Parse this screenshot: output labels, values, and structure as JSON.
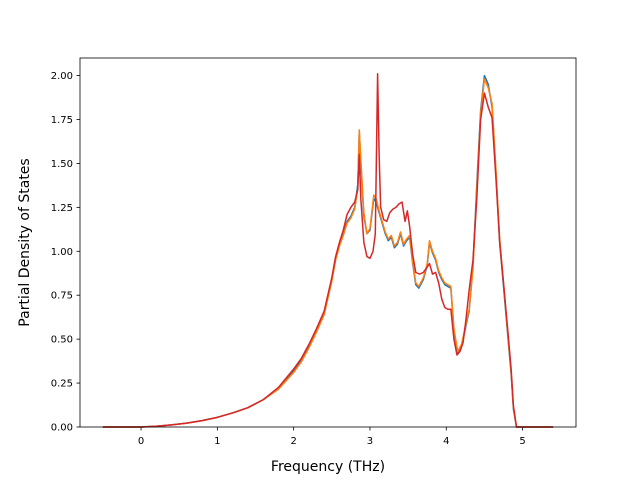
{
  "chart_data": {
    "type": "line",
    "xlabel": "Frequency (THz)",
    "ylabel": "Partial Density of States",
    "xlim": [
      -0.8,
      5.7
    ],
    "ylim": [
      0.0,
      2.1
    ],
    "xticks": [
      0,
      1,
      2,
      3,
      4,
      5
    ],
    "xtick_labels": [
      "0",
      "1",
      "2",
      "3",
      "4",
      "5"
    ],
    "yticks": [
      0.0,
      0.25,
      0.5,
      0.75,
      1.0,
      1.25,
      1.5,
      1.75,
      2.0
    ],
    "ytick_labels": [
      "0.00",
      "0.25",
      "0.50",
      "0.75",
      "1.00",
      "1.25",
      "1.50",
      "1.75",
      "2.00"
    ],
    "grid": false,
    "series": [
      {
        "color": "#1f77b4",
        "points": [
          [
            -0.5,
            0
          ],
          [
            0,
            0
          ],
          [
            0.2,
            0.004
          ],
          [
            0.4,
            0.012
          ],
          [
            0.6,
            0.022
          ],
          [
            0.8,
            0.036
          ],
          [
            1.0,
            0.055
          ],
          [
            1.2,
            0.08
          ],
          [
            1.4,
            0.11
          ],
          [
            1.6,
            0.155
          ],
          [
            1.8,
            0.22
          ],
          [
            2.0,
            0.32
          ],
          [
            2.1,
            0.38
          ],
          [
            2.2,
            0.46
          ],
          [
            2.3,
            0.55
          ],
          [
            2.4,
            0.65
          ],
          [
            2.5,
            0.84
          ],
          [
            2.55,
            0.96
          ],
          [
            2.6,
            1.04
          ],
          [
            2.65,
            1.1
          ],
          [
            2.7,
            1.17
          ],
          [
            2.75,
            1.2
          ],
          [
            2.8,
            1.25
          ],
          [
            2.84,
            1.38
          ],
          [
            2.86,
            1.68
          ],
          [
            2.88,
            1.5
          ],
          [
            2.92,
            1.2
          ],
          [
            2.96,
            1.1
          ],
          [
            3.0,
            1.12
          ],
          [
            3.05,
            1.3
          ],
          [
            3.08,
            1.28
          ],
          [
            3.12,
            1.22
          ],
          [
            3.16,
            1.16
          ],
          [
            3.2,
            1.1
          ],
          [
            3.24,
            1.06
          ],
          [
            3.28,
            1.08
          ],
          [
            3.32,
            1.02
          ],
          [
            3.36,
            1.04
          ],
          [
            3.4,
            1.1
          ],
          [
            3.44,
            1.03
          ],
          [
            3.48,
            1.06
          ],
          [
            3.52,
            1.08
          ],
          [
            3.56,
            0.93
          ],
          [
            3.6,
            0.81
          ],
          [
            3.64,
            0.79
          ],
          [
            3.7,
            0.84
          ],
          [
            3.75,
            0.92
          ],
          [
            3.78,
            1.05
          ],
          [
            3.82,
            0.99
          ],
          [
            3.86,
            0.95
          ],
          [
            3.9,
            0.88
          ],
          [
            3.94,
            0.84
          ],
          [
            3.98,
            0.81
          ],
          [
            4.02,
            0.8
          ],
          [
            4.06,
            0.79
          ],
          [
            4.1,
            0.55
          ],
          [
            4.15,
            0.42
          ],
          [
            4.2,
            0.46
          ],
          [
            4.25,
            0.56
          ],
          [
            4.3,
            0.66
          ],
          [
            4.35,
            0.92
          ],
          [
            4.4,
            1.38
          ],
          [
            4.45,
            1.8
          ],
          [
            4.5,
            2.0
          ],
          [
            4.55,
            1.95
          ],
          [
            4.6,
            1.82
          ],
          [
            4.65,
            1.45
          ],
          [
            4.7,
            1.05
          ],
          [
            4.75,
            0.8
          ],
          [
            4.8,
            0.55
          ],
          [
            4.85,
            0.3
          ],
          [
            4.88,
            0.1
          ],
          [
            4.92,
            0
          ],
          [
            5.4,
            0
          ]
        ]
      },
      {
        "color": "#ff7f0e",
        "points": [
          [
            -0.5,
            0
          ],
          [
            0,
            0
          ],
          [
            0.2,
            0.004
          ],
          [
            0.4,
            0.012
          ],
          [
            0.6,
            0.022
          ],
          [
            0.8,
            0.036
          ],
          [
            1.0,
            0.055
          ],
          [
            1.2,
            0.08
          ],
          [
            1.4,
            0.11
          ],
          [
            1.6,
            0.155
          ],
          [
            1.8,
            0.215
          ],
          [
            2.0,
            0.31
          ],
          [
            2.1,
            0.37
          ],
          [
            2.2,
            0.45
          ],
          [
            2.3,
            0.54
          ],
          [
            2.4,
            0.64
          ],
          [
            2.5,
            0.83
          ],
          [
            2.55,
            0.95
          ],
          [
            2.6,
            1.03
          ],
          [
            2.65,
            1.09
          ],
          [
            2.7,
            1.16
          ],
          [
            2.75,
            1.19
          ],
          [
            2.8,
            1.24
          ],
          [
            2.84,
            1.36
          ],
          [
            2.86,
            1.69
          ],
          [
            2.88,
            1.52
          ],
          [
            2.92,
            1.22
          ],
          [
            2.96,
            1.1
          ],
          [
            3.0,
            1.13
          ],
          [
            3.05,
            1.32
          ],
          [
            3.08,
            1.3
          ],
          [
            3.12,
            1.23
          ],
          [
            3.16,
            1.17
          ],
          [
            3.2,
            1.11
          ],
          [
            3.24,
            1.07
          ],
          [
            3.28,
            1.09
          ],
          [
            3.32,
            1.03
          ],
          [
            3.36,
            1.05
          ],
          [
            3.4,
            1.11
          ],
          [
            3.44,
            1.04
          ],
          [
            3.48,
            1.07
          ],
          [
            3.52,
            1.09
          ],
          [
            3.56,
            0.94
          ],
          [
            3.6,
            0.82
          ],
          [
            3.64,
            0.8
          ],
          [
            3.7,
            0.85
          ],
          [
            3.75,
            0.93
          ],
          [
            3.78,
            1.06
          ],
          [
            3.82,
            1.0
          ],
          [
            3.86,
            0.96
          ],
          [
            3.9,
            0.89
          ],
          [
            3.94,
            0.85
          ],
          [
            3.98,
            0.82
          ],
          [
            4.02,
            0.81
          ],
          [
            4.06,
            0.8
          ],
          [
            4.1,
            0.56
          ],
          [
            4.15,
            0.43
          ],
          [
            4.2,
            0.47
          ],
          [
            4.25,
            0.57
          ],
          [
            4.3,
            0.67
          ],
          [
            4.35,
            0.9
          ],
          [
            4.4,
            1.35
          ],
          [
            4.45,
            1.78
          ],
          [
            4.5,
            1.98
          ],
          [
            4.55,
            1.93
          ],
          [
            4.6,
            1.84
          ],
          [
            4.65,
            1.47
          ],
          [
            4.7,
            1.07
          ],
          [
            4.75,
            0.82
          ],
          [
            4.8,
            0.56
          ],
          [
            4.85,
            0.31
          ],
          [
            4.88,
            0.11
          ],
          [
            4.92,
            0
          ],
          [
            5.4,
            0
          ]
        ]
      },
      {
        "color": "#d62728",
        "points": [
          [
            -0.5,
            0
          ],
          [
            0,
            0
          ],
          [
            0.2,
            0.004
          ],
          [
            0.4,
            0.012
          ],
          [
            0.6,
            0.022
          ],
          [
            0.8,
            0.036
          ],
          [
            1.0,
            0.055
          ],
          [
            1.2,
            0.08
          ],
          [
            1.4,
            0.11
          ],
          [
            1.6,
            0.155
          ],
          [
            1.8,
            0.225
          ],
          [
            2.0,
            0.33
          ],
          [
            2.1,
            0.39
          ],
          [
            2.2,
            0.47
          ],
          [
            2.3,
            0.56
          ],
          [
            2.4,
            0.66
          ],
          [
            2.5,
            0.85
          ],
          [
            2.55,
            0.97
          ],
          [
            2.6,
            1.05
          ],
          [
            2.65,
            1.12
          ],
          [
            2.7,
            1.21
          ],
          [
            2.75,
            1.25
          ],
          [
            2.8,
            1.28
          ],
          [
            2.84,
            1.35
          ],
          [
            2.86,
            1.55
          ],
          [
            2.88,
            1.3
          ],
          [
            2.92,
            1.05
          ],
          [
            2.96,
            0.97
          ],
          [
            3.0,
            0.96
          ],
          [
            3.04,
            1.0
          ],
          [
            3.07,
            1.1
          ],
          [
            3.1,
            2.01
          ],
          [
            3.12,
            1.55
          ],
          [
            3.14,
            1.25
          ],
          [
            3.18,
            1.18
          ],
          [
            3.22,
            1.17
          ],
          [
            3.26,
            1.22
          ],
          [
            3.3,
            1.24
          ],
          [
            3.34,
            1.25
          ],
          [
            3.38,
            1.27
          ],
          [
            3.42,
            1.28
          ],
          [
            3.46,
            1.17
          ],
          [
            3.49,
            1.23
          ],
          [
            3.52,
            1.14
          ],
          [
            3.56,
            0.98
          ],
          [
            3.6,
            0.88
          ],
          [
            3.65,
            0.87
          ],
          [
            3.7,
            0.88
          ],
          [
            3.75,
            0.91
          ],
          [
            3.78,
            0.93
          ],
          [
            3.82,
            0.87
          ],
          [
            3.86,
            0.88
          ],
          [
            3.9,
            0.82
          ],
          [
            3.94,
            0.73
          ],
          [
            3.98,
            0.68
          ],
          [
            4.02,
            0.67
          ],
          [
            4.06,
            0.67
          ],
          [
            4.1,
            0.5
          ],
          [
            4.14,
            0.41
          ],
          [
            4.18,
            0.43
          ],
          [
            4.22,
            0.48
          ],
          [
            4.26,
            0.62
          ],
          [
            4.3,
            0.78
          ],
          [
            4.35,
            0.95
          ],
          [
            4.4,
            1.3
          ],
          [
            4.45,
            1.75
          ],
          [
            4.5,
            1.9
          ],
          [
            4.55,
            1.82
          ],
          [
            4.6,
            1.76
          ],
          [
            4.65,
            1.42
          ],
          [
            4.7,
            1.05
          ],
          [
            4.75,
            0.82
          ],
          [
            4.8,
            0.58
          ],
          [
            4.85,
            0.33
          ],
          [
            4.88,
            0.12
          ],
          [
            4.92,
            0
          ],
          [
            5.4,
            0
          ]
        ]
      }
    ]
  }
}
